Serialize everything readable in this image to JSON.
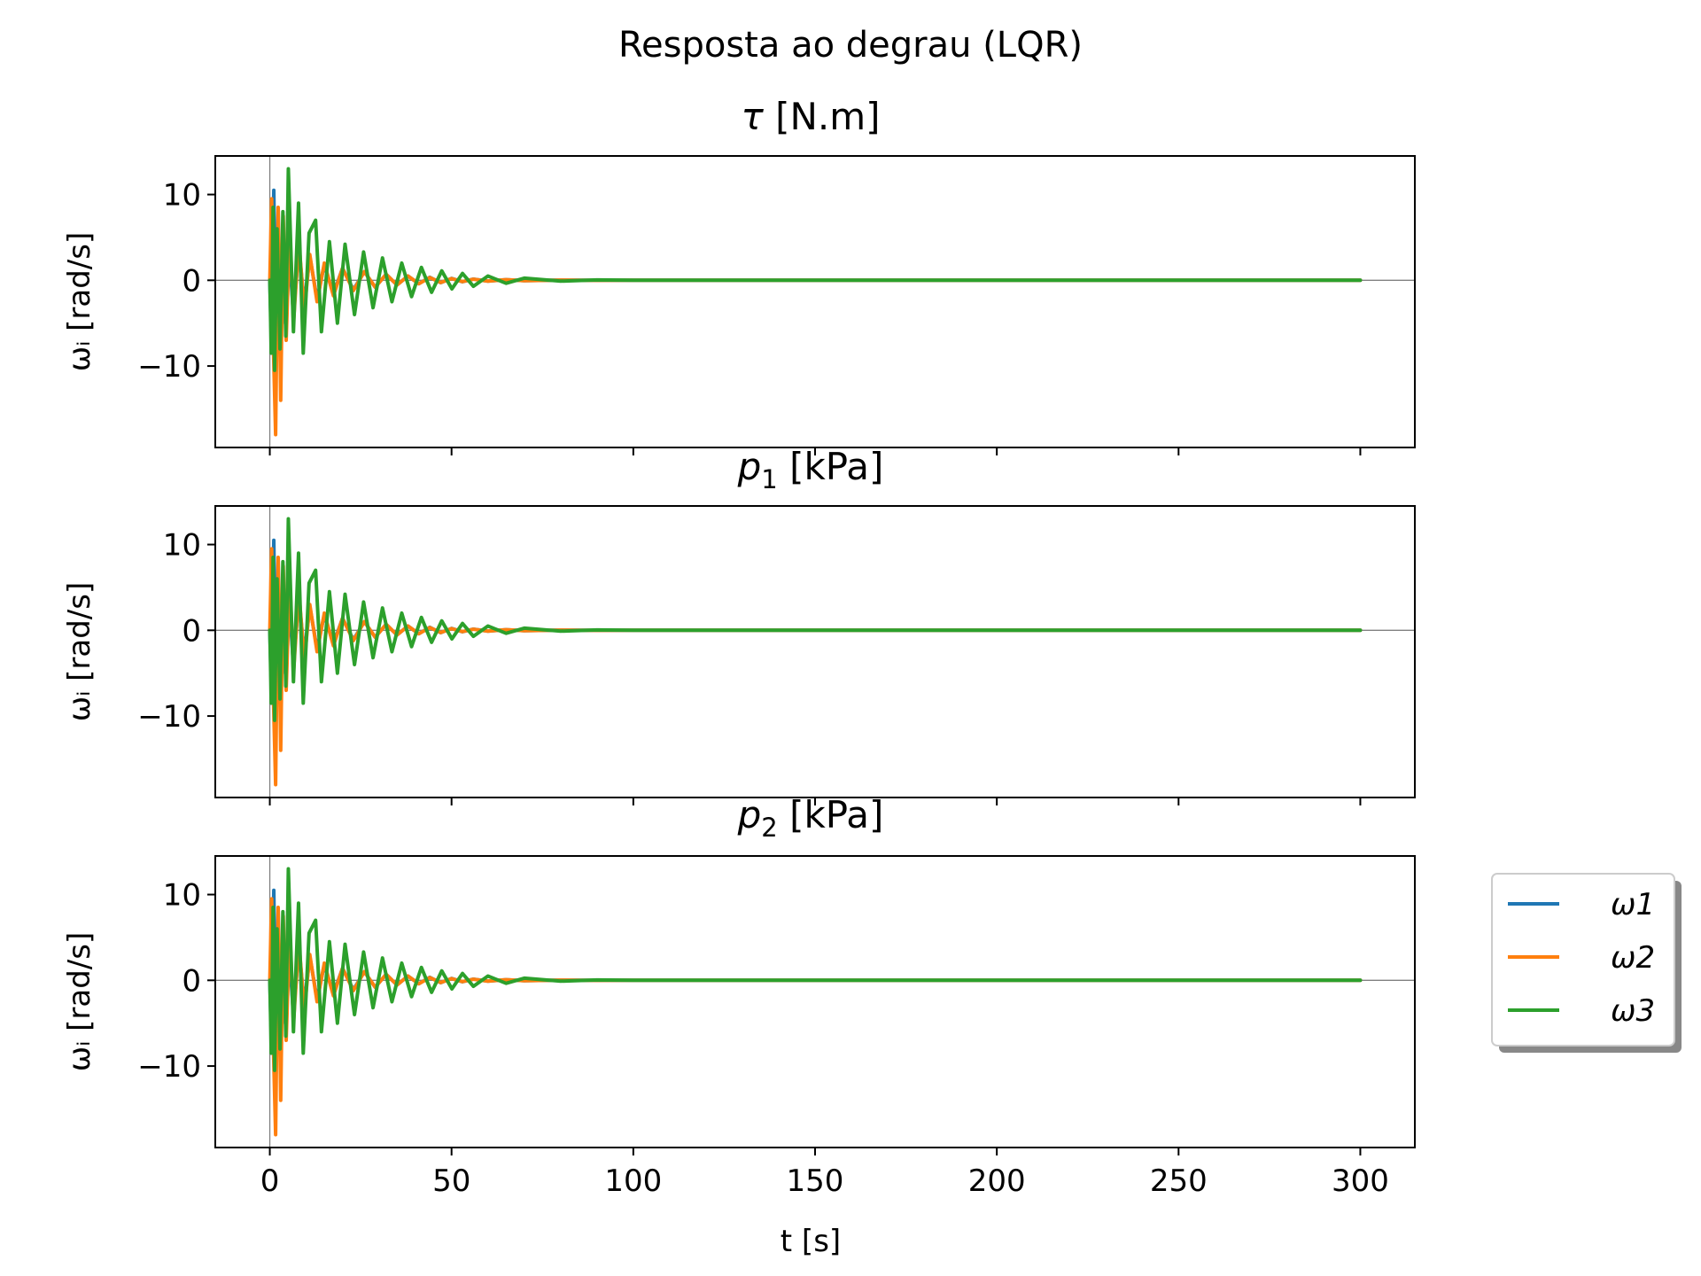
{
  "chart_data": {
    "type": "line",
    "title": "Resposta ao degrau (LQR)",
    "xlabel": "t [s]",
    "xlim": [
      -15,
      315
    ],
    "ylim": [
      -19.5,
      14.5
    ],
    "xticks": [
      0,
      50,
      100,
      150,
      200,
      250,
      300
    ],
    "xtick_labels": [
      "0",
      "50",
      "100",
      "150",
      "200",
      "250",
      "300"
    ],
    "yticks": [
      10,
      0,
      -10
    ],
    "ytick_labels": [
      "10",
      "0",
      "−10"
    ],
    "reference_lines": {
      "x": 0,
      "y": 0
    },
    "legend": {
      "placement": "outside-right-lower",
      "shadow": true
    },
    "series_colors": [
      "#1f77b4",
      "#ff7f0e",
      "#2ca02c"
    ],
    "subplots": [
      {
        "title": "τ [N.m]",
        "title_parts": {
          "symbol": "τ",
          "subscript": "",
          "rest": " [N.m]"
        },
        "ylabel": "ωᵢ [rad/s]",
        "series": [
          {
            "name": "ω1",
            "t": [
              0,
              0.5,
              1.1,
              1.6,
              2.3,
              3,
              3.6,
              4.3,
              5.2,
              6.5,
              8,
              9.5,
              11,
              13,
              15,
              17.5,
              20,
              23,
              26,
              29,
              32,
              35,
              38,
              41,
              44,
              47,
              50,
              53,
              56,
              60,
              65,
              70,
              80,
              90,
              100,
              300
            ],
            "values": [
              0,
              -8,
              10.5,
              -6,
              8,
              -7.5,
              6,
              -5,
              4,
              -4,
              3.8,
              -2.8,
              2.8,
              -2.2,
              1.8,
              -1.6,
              1.4,
              -1.1,
              1,
              -0.8,
              0.7,
              -0.55,
              0.5,
              -0.4,
              0.35,
              -0.28,
              0.22,
              -0.17,
              0.14,
              -0.1,
              0.07,
              -0.05,
              0.02,
              -0.01,
              0,
              0
            ]
          },
          {
            "name": "ω2",
            "t": [
              0,
              0.5,
              1,
              1.6,
              2.3,
              3,
              3.7,
              4.5,
              5.5,
              6.5,
              8,
              9.5,
              11,
              13,
              15,
              17.5,
              20,
              23,
              26,
              29,
              32,
              35,
              38,
              41,
              44,
              47,
              50,
              53,
              56,
              60,
              65,
              70,
              80,
              90,
              100,
              300
            ],
            "values": [
              0,
              9.5,
              -8,
              -18,
              8.5,
              -14,
              7.5,
              -7,
              6,
              -5,
              4.5,
              -3.5,
              3,
              -2.5,
              2,
              -1.8,
              1.4,
              -1.2,
              1,
              -0.8,
              0.7,
              -0.55,
              0.5,
              -0.4,
              0.32,
              -0.26,
              0.2,
              -0.16,
              0.13,
              -0.1,
              0.07,
              -0.05,
              0.02,
              -0.01,
              0,
              0
            ]
          },
          {
            "name": "ω3",
            "t": [
              0,
              0.4,
              0.9,
              1.3,
              2,
              2.8,
              3.6,
              4.4,
              5.1,
              6.5,
              7.9,
              9.2,
              10.8,
              12.6,
              14.2,
              16.4,
              18.6,
              20.7,
              23.3,
              25.8,
              28.4,
              31,
              33.6,
              36.3,
              39,
              41.7,
              44.5,
              47.3,
              50.1,
              53,
              56,
              60,
              65,
              70,
              80,
              90,
              100,
              300
            ],
            "values": [
              0,
              -8.5,
              8.5,
              -10.5,
              6,
              -8,
              8,
              -6.5,
              13,
              -6,
              9,
              -8.5,
              5.5,
              7,
              -6,
              4.5,
              -5,
              4.2,
              -4,
              3.3,
              -3.2,
              2.6,
              -2.5,
              2,
              -1.9,
              1.5,
              -1.4,
              1.1,
              -1,
              0.8,
              -0.7,
              0.5,
              -0.35,
              0.25,
              -0.1,
              0.05,
              0,
              0
            ]
          }
        ]
      },
      {
        "title": "p1 [kPa]",
        "title_parts": {
          "symbol": "p",
          "subscript": "1",
          "rest": " [kPa]"
        },
        "ylabel": "ωᵢ [rad/s]",
        "series": [
          {
            "name": "ω1",
            "t": [
              0,
              0.5,
              1.1,
              1.6,
              2.3,
              3,
              3.6,
              4.3,
              5.2,
              6.5,
              8,
              9.5,
              11,
              13,
              15,
              17.5,
              20,
              23,
              26,
              29,
              32,
              35,
              38,
              41,
              44,
              47,
              50,
              53,
              56,
              60,
              65,
              70,
              80,
              90,
              100,
              300
            ],
            "values": [
              0,
              -8,
              10.5,
              -6,
              8,
              -7.5,
              6,
              -5,
              4,
              -4,
              3.8,
              -2.8,
              2.8,
              -2.2,
              1.8,
              -1.6,
              1.4,
              -1.1,
              1,
              -0.8,
              0.7,
              -0.55,
              0.5,
              -0.4,
              0.35,
              -0.28,
              0.22,
              -0.17,
              0.14,
              -0.1,
              0.07,
              -0.05,
              0.02,
              -0.01,
              0,
              0
            ]
          },
          {
            "name": "ω2",
            "t": [
              0,
              0.5,
              1,
              1.6,
              2.3,
              3,
              3.7,
              4.5,
              5.5,
              6.5,
              8,
              9.5,
              11,
              13,
              15,
              17.5,
              20,
              23,
              26,
              29,
              32,
              35,
              38,
              41,
              44,
              47,
              50,
              53,
              56,
              60,
              65,
              70,
              80,
              90,
              100,
              300
            ],
            "values": [
              0,
              9.5,
              -8,
              -18,
              8.5,
              -14,
              7.5,
              -7,
              6,
              -5,
              4.5,
              -3.5,
              3,
              -2.5,
              2,
              -1.8,
              1.4,
              -1.2,
              1,
              -0.8,
              0.7,
              -0.55,
              0.5,
              -0.4,
              0.32,
              -0.26,
              0.2,
              -0.16,
              0.13,
              -0.1,
              0.07,
              -0.05,
              0.02,
              -0.01,
              0,
              0
            ]
          },
          {
            "name": "ω3",
            "t": [
              0,
              0.4,
              0.9,
              1.3,
              2,
              2.8,
              3.6,
              4.4,
              5.1,
              6.5,
              7.9,
              9.2,
              10.8,
              12.6,
              14.2,
              16.4,
              18.6,
              20.7,
              23.3,
              25.8,
              28.4,
              31,
              33.6,
              36.3,
              39,
              41.7,
              44.5,
              47.3,
              50.1,
              53,
              56,
              60,
              65,
              70,
              80,
              90,
              100,
              300
            ],
            "values": [
              0,
              -8.5,
              8.5,
              -10.5,
              6,
              -8,
              8,
              -6.5,
              13,
              -6,
              9,
              -8.5,
              5.5,
              7,
              -6,
              4.5,
              -5,
              4.2,
              -4,
              3.3,
              -3.2,
              2.6,
              -2.5,
              2,
              -1.9,
              1.5,
              -1.4,
              1.1,
              -1,
              0.8,
              -0.7,
              0.5,
              -0.35,
              0.25,
              -0.1,
              0.05,
              0,
              0
            ]
          }
        ]
      },
      {
        "title": "p2 [kPa]",
        "title_parts": {
          "symbol": "p",
          "subscript": "2",
          "rest": " [kPa]"
        },
        "ylabel": "ωᵢ [rad/s]",
        "series": [
          {
            "name": "ω1",
            "t": [
              0,
              0.5,
              1.1,
              1.6,
              2.3,
              3,
              3.6,
              4.3,
              5.2,
              6.5,
              8,
              9.5,
              11,
              13,
              15,
              17.5,
              20,
              23,
              26,
              29,
              32,
              35,
              38,
              41,
              44,
              47,
              50,
              53,
              56,
              60,
              65,
              70,
              80,
              90,
              100,
              300
            ],
            "values": [
              0,
              -8,
              10.5,
              -6,
              8,
              -7.5,
              6,
              -5,
              4,
              -4,
              3.8,
              -2.8,
              2.8,
              -2.2,
              1.8,
              -1.6,
              1.4,
              -1.1,
              1,
              -0.8,
              0.7,
              -0.55,
              0.5,
              -0.4,
              0.35,
              -0.28,
              0.22,
              -0.17,
              0.14,
              -0.1,
              0.07,
              -0.05,
              0.02,
              -0.01,
              0,
              0
            ]
          },
          {
            "name": "ω2",
            "t": [
              0,
              0.5,
              1,
              1.6,
              2.3,
              3,
              3.7,
              4.5,
              5.5,
              6.5,
              8,
              9.5,
              11,
              13,
              15,
              17.5,
              20,
              23,
              26,
              29,
              32,
              35,
              38,
              41,
              44,
              47,
              50,
              53,
              56,
              60,
              65,
              70,
              80,
              90,
              100,
              300
            ],
            "values": [
              0,
              9.5,
              -8,
              -18,
              8.5,
              -14,
              7.5,
              -7,
              6,
              -5,
              4.5,
              -3.5,
              3,
              -2.5,
              2,
              -1.8,
              1.4,
              -1.2,
              1,
              -0.8,
              0.7,
              -0.55,
              0.5,
              -0.4,
              0.32,
              -0.26,
              0.2,
              -0.16,
              0.13,
              -0.1,
              0.07,
              -0.05,
              0.02,
              -0.01,
              0,
              0
            ]
          },
          {
            "name": "ω3",
            "t": [
              0,
              0.4,
              0.9,
              1.3,
              2,
              2.8,
              3.6,
              4.4,
              5.1,
              6.5,
              7.9,
              9.2,
              10.8,
              12.6,
              14.2,
              16.4,
              18.6,
              20.7,
              23.3,
              25.8,
              28.4,
              31,
              33.6,
              36.3,
              39,
              41.7,
              44.5,
              47.3,
              50.1,
              53,
              56,
              60,
              65,
              70,
              80,
              90,
              100,
              300
            ],
            "values": [
              0,
              -8.5,
              8.5,
              -10.5,
              6,
              -8,
              8,
              -6.5,
              13,
              -6,
              9,
              -8.5,
              5.5,
              7,
              -6,
              4.5,
              -5,
              4.2,
              -4,
              3.3,
              -3.2,
              2.6,
              -2.5,
              2,
              -1.9,
              1.5,
              -1.4,
              1.1,
              -1,
              0.8,
              -0.7,
              0.5,
              -0.35,
              0.25,
              -0.1,
              0.05,
              0,
              0
            ]
          }
        ]
      }
    ]
  }
}
